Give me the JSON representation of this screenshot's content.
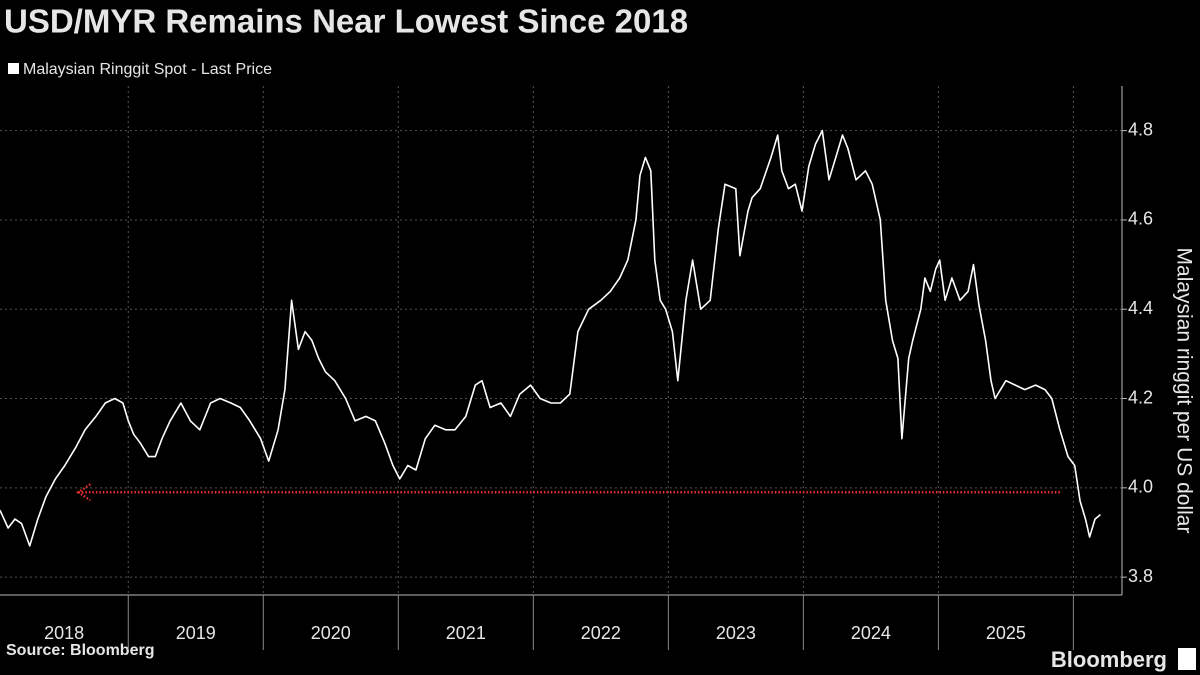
{
  "chart_data": {
    "type": "line",
    "title": "USD/MYR Remains Near Lowest Since 2018",
    "y_label": "Malaysian ringgit per US dollar",
    "source": "Source: Bloomberg",
    "branding": "Bloomberg",
    "xlim": [
      2018.05,
      2026.36
    ],
    "xticks": [
      2018,
      2019,
      2020,
      2021,
      2022,
      2023,
      2024,
      2025
    ],
    "ylim": [
      3.76,
      4.9
    ],
    "yticks": [
      3.8,
      {
        "value": 4,
        "label": "4.0"
      },
      4.2,
      4.4,
      4.6,
      4.8
    ],
    "y_axis_side": "right",
    "grid": true,
    "reference": {
      "y": 3.99,
      "x": [
        2018.63,
        2025.9
      ],
      "color": "#e8302e"
    },
    "x": [
      2018.05,
      2018.11,
      2018.16,
      2018.21,
      2018.27,
      2018.33,
      2018.39,
      2018.46,
      2018.53,
      2018.61,
      2018.68,
      2018.76,
      2018.83,
      2018.9,
      2018.96,
      2019.0,
      2019.04,
      2019.09,
      2019.15,
      2019.2,
      2019.25,
      2019.31,
      2019.39,
      2019.46,
      2019.53,
      2019.61,
      2019.68,
      2019.76,
      2019.83,
      2019.9,
      2019.98,
      2020.04,
      2020.11,
      2020.16,
      2020.21,
      2020.26,
      2020.31,
      2020.36,
      2020.41,
      2020.46,
      2020.53,
      2020.61,
      2020.68,
      2020.76,
      2020.83,
      2020.9,
      2020.96,
      2021.01,
      2021.07,
      2021.13,
      2021.2,
      2021.27,
      2021.35,
      2021.42,
      2021.5,
      2021.57,
      2021.62,
      2021.68,
      2021.76,
      2021.83,
      2021.9,
      2021.98,
      2022.05,
      2022.13,
      2022.2,
      2022.27,
      2022.33,
      2022.41,
      2022.5,
      2022.57,
      2022.64,
      2022.7,
      2022.76,
      2022.79,
      2022.83,
      2022.87,
      2022.9,
      2022.94,
      2022.98,
      2023.03,
      2023.07,
      2023.13,
      2023.18,
      2023.24,
      2023.31,
      2023.37,
      2023.42,
      2023.5,
      2023.53,
      2023.59,
      2023.62,
      2023.68,
      2023.76,
      2023.81,
      2023.84,
      2023.89,
      2023.94,
      2023.99,
      2024.04,
      2024.09,
      2024.14,
      2024.19,
      2024.24,
      2024.29,
      2024.33,
      2024.39,
      2024.46,
      2024.51,
      2024.57,
      2024.61,
      2024.66,
      2024.7,
      2024.73,
      2024.78,
      2024.81,
      2024.87,
      2024.9,
      2024.94,
      2024.98,
      2025.01,
      2025.05,
      2025.1,
      2025.16,
      2025.22,
      2025.26,
      2025.3,
      2025.35,
      2025.39,
      2025.42,
      2025.5,
      2025.57,
      2025.64,
      2025.72,
      2025.79,
      2025.84,
      2025.9,
      2025.96,
      2026.01,
      2026.05,
      2026.09,
      2026.12,
      2026.16,
      2026.2
    ],
    "series": [
      {
        "name": "Malaysian Ringgit Spot - Last Price",
        "color": "#ffffff",
        "values": [
          3.95,
          3.91,
          3.93,
          3.92,
          3.87,
          3.93,
          3.98,
          4.02,
          4.05,
          4.09,
          4.13,
          4.16,
          4.19,
          4.2,
          4.19,
          4.15,
          4.12,
          4.1,
          4.07,
          4.07,
          4.11,
          4.15,
          4.19,
          4.15,
          4.13,
          4.19,
          4.2,
          4.19,
          4.18,
          4.15,
          4.11,
          4.06,
          4.13,
          4.22,
          4.42,
          4.31,
          4.35,
          4.33,
          4.29,
          4.26,
          4.24,
          4.2,
          4.15,
          4.16,
          4.15,
          4.1,
          4.05,
          4.02,
          4.05,
          4.04,
          4.11,
          4.14,
          4.13,
          4.13,
          4.16,
          4.23,
          4.24,
          4.18,
          4.19,
          4.16,
          4.21,
          4.23,
          4.2,
          4.19,
          4.19,
          4.21,
          4.35,
          4.4,
          4.42,
          4.44,
          4.47,
          4.51,
          4.6,
          4.7,
          4.74,
          4.71,
          4.51,
          4.42,
          4.4,
          4.35,
          4.24,
          4.42,
          4.51,
          4.4,
          4.42,
          4.58,
          4.68,
          4.67,
          4.52,
          4.62,
          4.65,
          4.67,
          4.74,
          4.79,
          4.71,
          4.67,
          4.68,
          4.62,
          4.72,
          4.77,
          4.8,
          4.69,
          4.74,
          4.79,
          4.76,
          4.69,
          4.71,
          4.68,
          4.6,
          4.42,
          4.33,
          4.29,
          4.11,
          4.29,
          4.33,
          4.4,
          4.47,
          4.44,
          4.49,
          4.51,
          4.42,
          4.47,
          4.42,
          4.44,
          4.5,
          4.41,
          4.33,
          4.24,
          4.2,
          4.24,
          4.23,
          4.22,
          4.23,
          4.22,
          4.2,
          4.13,
          4.07,
          4.05,
          3.97,
          3.93,
          3.89,
          3.93,
          3.94
        ]
      }
    ]
  }
}
